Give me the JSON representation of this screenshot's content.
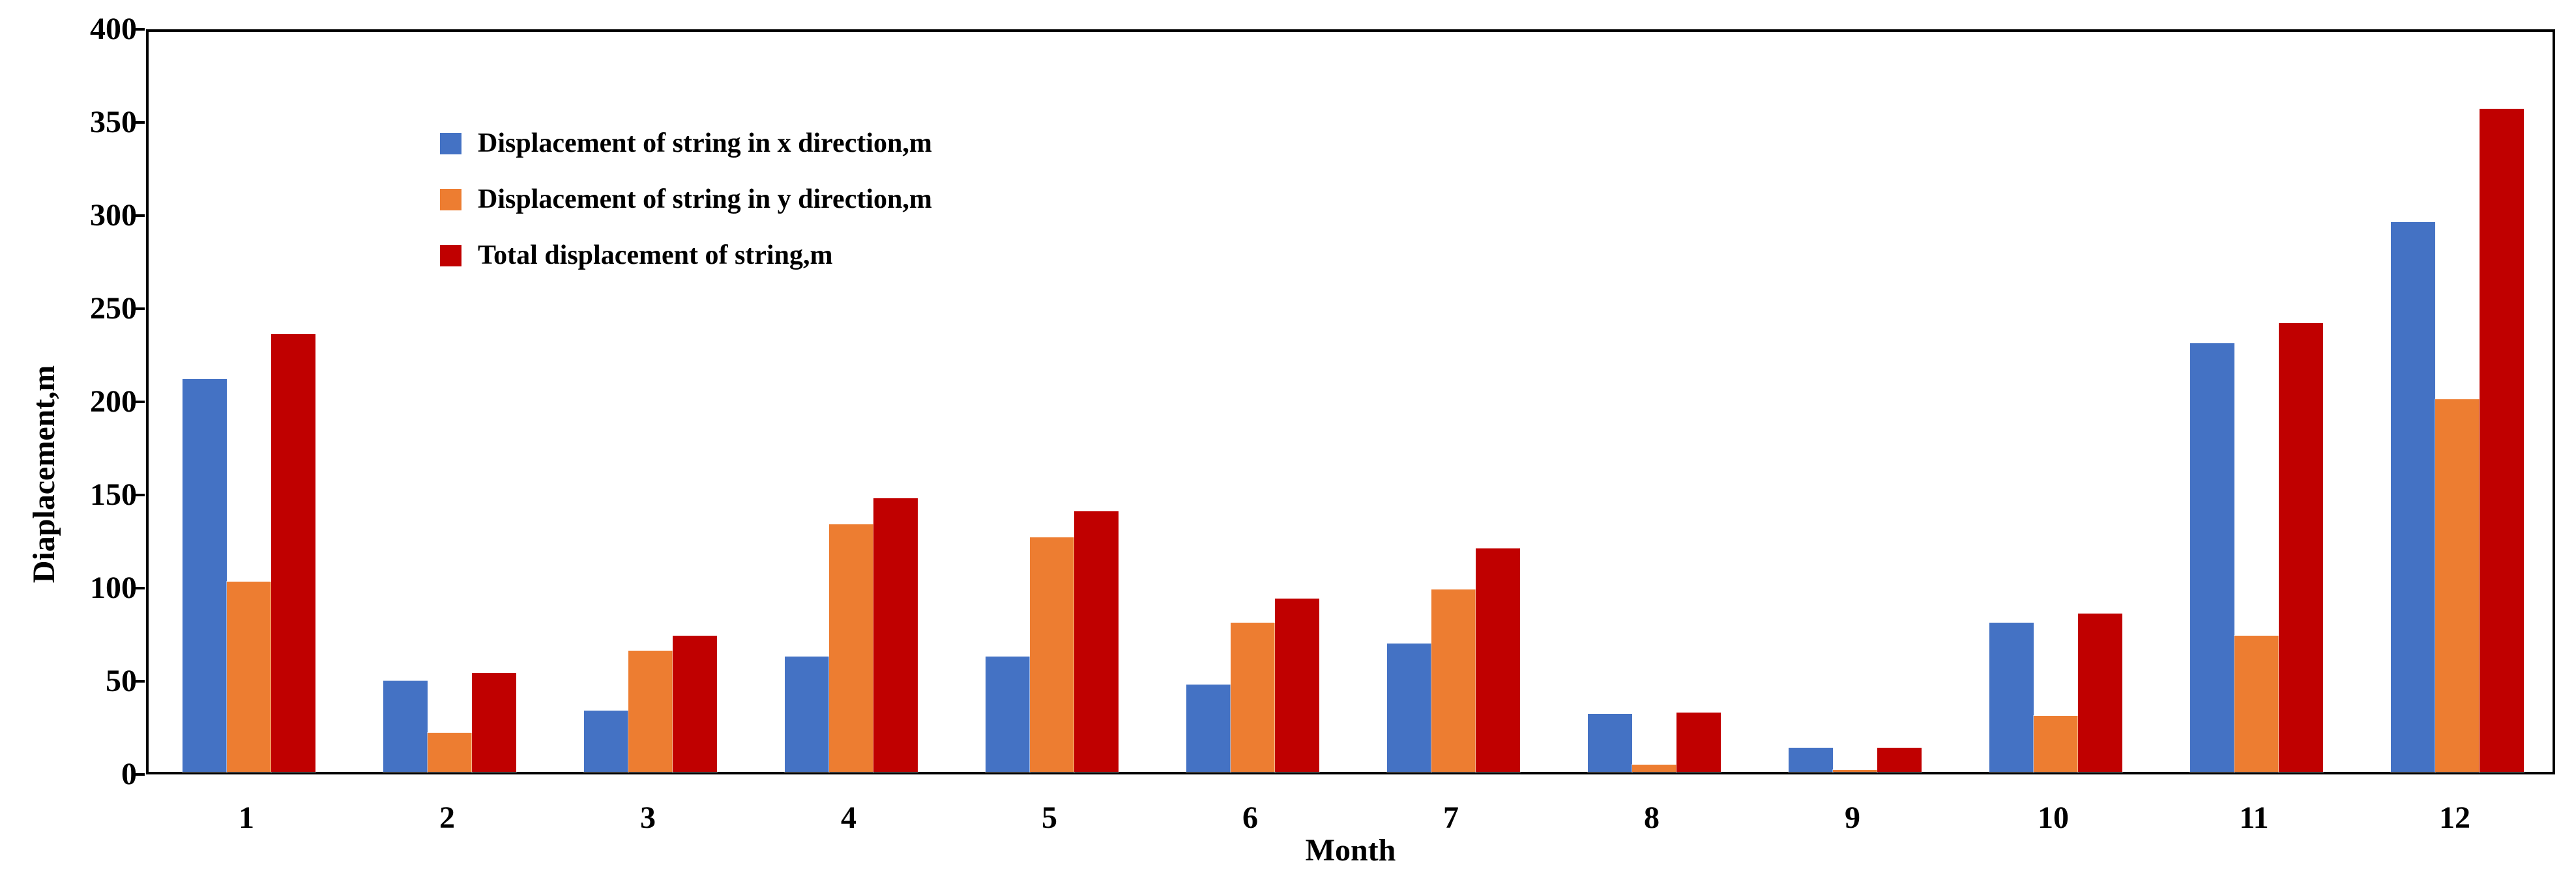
{
  "chart_data": {
    "type": "bar",
    "title": "",
    "categories": [
      "1",
      "2",
      "3",
      "4",
      "5",
      "6",
      "7",
      "8",
      "9",
      "10",
      "11",
      "12"
    ],
    "series": [
      {
        "name": "Displacement of string in x direction,m",
        "color": "#4472C4",
        "values": [
          211,
          49,
          33,
          62,
          62,
          47,
          69,
          31,
          13,
          80,
          230,
          295
        ]
      },
      {
        "name": "Displacement of string in y direction,m",
        "color": "#ED7D31",
        "values": [
          102,
          21,
          65,
          133,
          126,
          80,
          98,
          4,
          1,
          30,
          73,
          200
        ]
      },
      {
        "name": "Total displacement of string,m",
        "color": "#C00000",
        "values": [
          235,
          53,
          73,
          147,
          140,
          93,
          120,
          32,
          13,
          85,
          241,
          356
        ]
      }
    ],
    "xlabel": "Month",
    "ylabel": "Diaplacement,m",
    "ylim": [
      0,
      400
    ],
    "yticks": [
      0,
      50,
      100,
      150,
      200,
      250,
      300,
      350,
      400
    ],
    "grid": false,
    "legend_position": "top-left-inside"
  }
}
